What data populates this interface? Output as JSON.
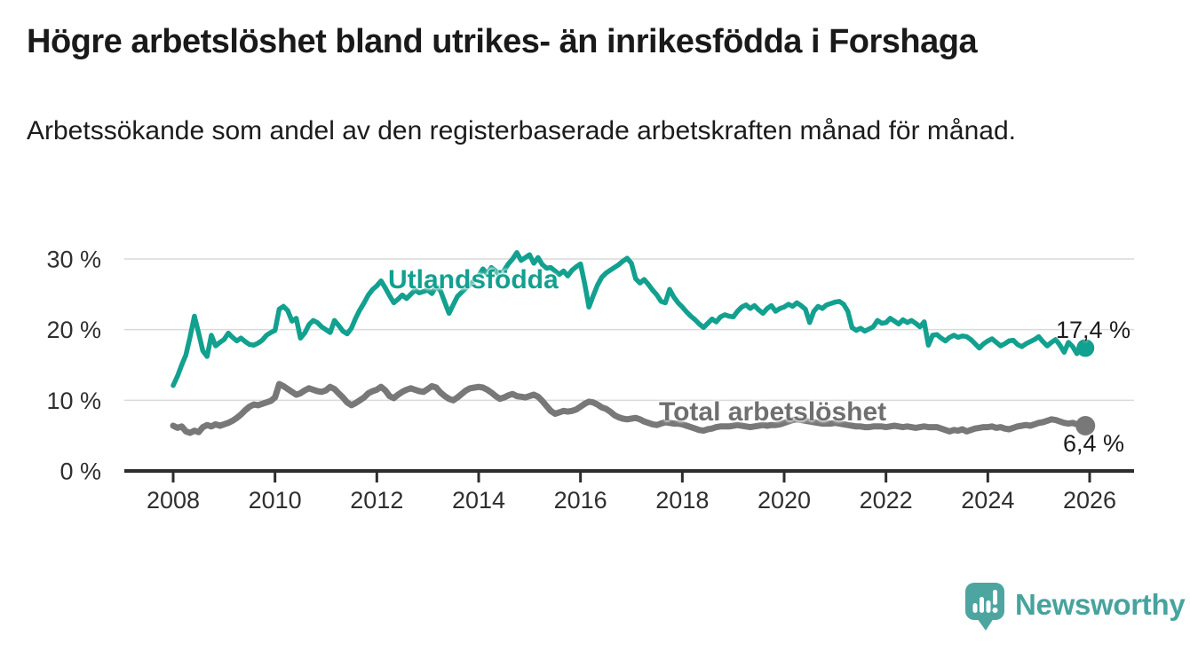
{
  "chart_data": {
    "type": "line",
    "title": "Högre arbetslöshet bland utrikes- än inrikesfödda i Forshaga",
    "subtitle": "Arbetssökande som andel av den registerbaserade arbetskraften månad för månad.",
    "x_axis": {
      "start_year": 2008,
      "frequency": "monthly",
      "ticks": [
        {
          "value": 2008,
          "label": "2008"
        },
        {
          "value": 2010,
          "label": "2010"
        },
        {
          "value": 2012,
          "label": "2012"
        },
        {
          "value": 2014,
          "label": "2014"
        },
        {
          "value": 2016,
          "label": "2016"
        },
        {
          "value": 2018,
          "label": "2018"
        },
        {
          "value": 2020,
          "label": "2020"
        },
        {
          "value": 2022,
          "label": "2022"
        },
        {
          "value": 2024,
          "label": "2024"
        },
        {
          "value": 2026,
          "label": "2026"
        }
      ]
    },
    "y_axis": {
      "unit": "%",
      "range": [
        0,
        32
      ],
      "ticks": [
        {
          "value": 0,
          "label": "0 %"
        },
        {
          "value": 10,
          "label": "10 %"
        },
        {
          "value": 20,
          "label": "20 %"
        },
        {
          "value": 30,
          "label": "30 %"
        }
      ]
    },
    "grid": "horizontal",
    "legend": "inline-labels",
    "series": [
      {
        "name": "Utlandsfödda",
        "color": "#12a08f",
        "end_value": 17.4,
        "end_label": "17,4 %",
        "values": [
          12.1,
          13.4,
          15.0,
          16.4,
          19.0,
          21.9,
          19.5,
          17.0,
          16.2,
          19.2,
          17.7,
          18.2,
          18.6,
          19.5,
          18.9,
          18.4,
          18.8,
          18.3,
          17.9,
          17.8,
          18.1,
          18.5,
          19.2,
          19.6,
          19.9,
          22.9,
          23.3,
          22.7,
          21.2,
          21.6,
          18.8,
          19.5,
          20.7,
          21.3,
          21.0,
          20.4,
          20.0,
          19.6,
          21.3,
          20.6,
          19.8,
          19.4,
          20.2,
          21.6,
          22.8,
          23.8,
          24.9,
          25.7,
          26.2,
          26.9,
          25.9,
          24.8,
          23.8,
          24.3,
          24.9,
          24.4,
          25.0,
          25.6,
          25.2,
          25.4,
          25.6,
          25.1,
          26.2,
          25.5,
          23.9,
          22.3,
          23.5,
          24.7,
          25.3,
          25.9,
          26.4,
          27.0,
          27.6,
          28.6,
          27.9,
          28.8,
          28.3,
          27.6,
          28.4,
          29.3,
          30.0,
          30.9,
          29.8,
          30.2,
          30.6,
          29.4,
          30.2,
          29.2,
          28.7,
          28.8,
          28.3,
          27.8,
          28.3,
          27.6,
          28.4,
          28.9,
          29.3,
          26.5,
          23.2,
          24.8,
          26.3,
          27.4,
          28.0,
          28.4,
          28.8,
          29.2,
          29.7,
          30.1,
          29.4,
          27.2,
          26.6,
          27.1,
          26.4,
          25.6,
          24.9,
          24.0,
          23.8,
          25.7,
          24.6,
          23.8,
          23.2,
          22.5,
          21.9,
          21.4,
          20.8,
          20.3,
          20.9,
          21.5,
          21.1,
          21.8,
          22.1,
          21.9,
          21.8,
          22.6,
          23.2,
          23.5,
          23.0,
          23.4,
          22.8,
          22.3,
          23.0,
          23.4,
          22.6,
          23.0,
          23.2,
          23.6,
          23.3,
          23.8,
          23.4,
          22.9,
          21.0,
          22.6,
          23.3,
          23.0,
          23.5,
          23.7,
          23.9,
          24.0,
          23.6,
          22.6,
          20.3,
          19.9,
          20.2,
          19.8,
          20.1,
          20.4,
          21.3,
          20.9,
          21.0,
          21.6,
          21.2,
          20.8,
          21.4,
          21.0,
          21.3,
          20.9,
          20.4,
          21.1,
          17.8,
          19.2,
          19.3,
          18.8,
          18.4,
          18.9,
          19.2,
          18.9,
          19.1,
          19.0,
          18.6,
          18.0,
          17.4,
          18.0,
          18.4,
          18.7,
          18.2,
          17.7,
          18.0,
          18.4,
          18.5,
          17.9,
          17.6,
          18.0,
          18.3,
          18.6,
          19.0,
          18.3,
          17.7,
          18.2,
          18.6,
          17.8,
          16.8,
          18.2,
          17.6,
          16.6,
          18.1,
          17.4
        ]
      },
      {
        "name": "Total arbetslöshet",
        "color": "#787878",
        "end_value": 6.4,
        "end_label": "6,4 %",
        "values": [
          6.4,
          6.1,
          6.3,
          5.6,
          5.4,
          5.7,
          5.5,
          6.2,
          6.5,
          6.3,
          6.6,
          6.4,
          6.6,
          6.8,
          7.1,
          7.5,
          8.0,
          8.6,
          9.1,
          9.4,
          9.3,
          9.5,
          9.7,
          9.9,
          10.4,
          12.3,
          12.0,
          11.6,
          11.2,
          10.8,
          11.0,
          11.4,
          11.7,
          11.5,
          11.3,
          11.2,
          11.4,
          11.9,
          11.6,
          11.0,
          10.4,
          9.7,
          9.3,
          9.6,
          10.0,
          10.4,
          11.0,
          11.3,
          11.5,
          11.9,
          11.4,
          10.6,
          10.3,
          10.8,
          11.2,
          11.5,
          11.7,
          11.5,
          11.3,
          11.2,
          11.6,
          12.0,
          11.8,
          11.1,
          10.6,
          10.2,
          10.0,
          10.4,
          10.9,
          11.4,
          11.7,
          11.8,
          11.9,
          11.8,
          11.5,
          11.1,
          10.6,
          10.2,
          10.4,
          10.7,
          10.9,
          10.6,
          10.5,
          10.4,
          10.6,
          10.8,
          10.5,
          9.9,
          9.2,
          8.5,
          8.1,
          8.3,
          8.5,
          8.4,
          8.5,
          8.7,
          9.1,
          9.5,
          9.8,
          9.7,
          9.4,
          9.0,
          8.8,
          8.4,
          7.9,
          7.6,
          7.4,
          7.3,
          7.4,
          7.5,
          7.3,
          7.0,
          6.8,
          6.6,
          6.5,
          6.7,
          6.9,
          6.8,
          6.7,
          6.7,
          6.6,
          6.4,
          6.2,
          6.0,
          5.8,
          5.7,
          5.9,
          6.0,
          6.2,
          6.3,
          6.3,
          6.3,
          6.4,
          6.5,
          6.4,
          6.3,
          6.2,
          6.3,
          6.4,
          6.5,
          6.4,
          6.5,
          6.5,
          6.6,
          6.8,
          7.0,
          7.2,
          7.3,
          7.2,
          7.1,
          7.0,
          6.9,
          6.8,
          6.7,
          6.7,
          6.7,
          6.8,
          6.7,
          6.6,
          6.5,
          6.4,
          6.3,
          6.3,
          6.2,
          6.2,
          6.3,
          6.3,
          6.3,
          6.2,
          6.3,
          6.4,
          6.3,
          6.2,
          6.3,
          6.2,
          6.1,
          6.2,
          6.3,
          6.2,
          6.2,
          6.2,
          6.0,
          5.8,
          5.6,
          5.8,
          5.7,
          5.9,
          5.6,
          5.8,
          6.0,
          6.1,
          6.2,
          6.2,
          6.3,
          6.1,
          6.2,
          6.0,
          5.9,
          6.1,
          6.3,
          6.4,
          6.5,
          6.4,
          6.6,
          6.8,
          6.9,
          7.1,
          7.3,
          7.2,
          7.0,
          6.8,
          6.7,
          6.8,
          6.6,
          6.5,
          6.4
        ]
      }
    ]
  },
  "branding": {
    "name": "Newsworthy",
    "color": "#46a39d"
  }
}
